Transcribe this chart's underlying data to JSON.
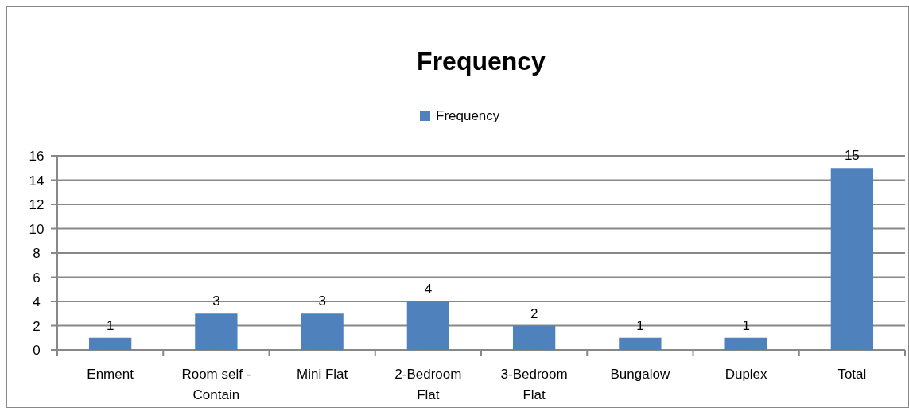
{
  "chart_data": {
    "type": "bar",
    "title": "Frequency",
    "categories": [
      "Enment",
      "Room self - Contain",
      "Mini Flat",
      "2-Bedroom Flat",
      "3-Bedroom Flat",
      "Bungalow",
      "Duplex",
      "Total"
    ],
    "series": [
      {
        "name": "Frequency",
        "color": "#4f81bd",
        "values": [
          1,
          3,
          3,
          4,
          2,
          1,
          1,
          15
        ]
      }
    ],
    "ylim": [
      0,
      16
    ],
    "yticks": [
      0,
      2,
      4,
      6,
      8,
      10,
      12,
      14,
      16
    ],
    "grid": "y",
    "legend": "top",
    "data_labels": true
  }
}
